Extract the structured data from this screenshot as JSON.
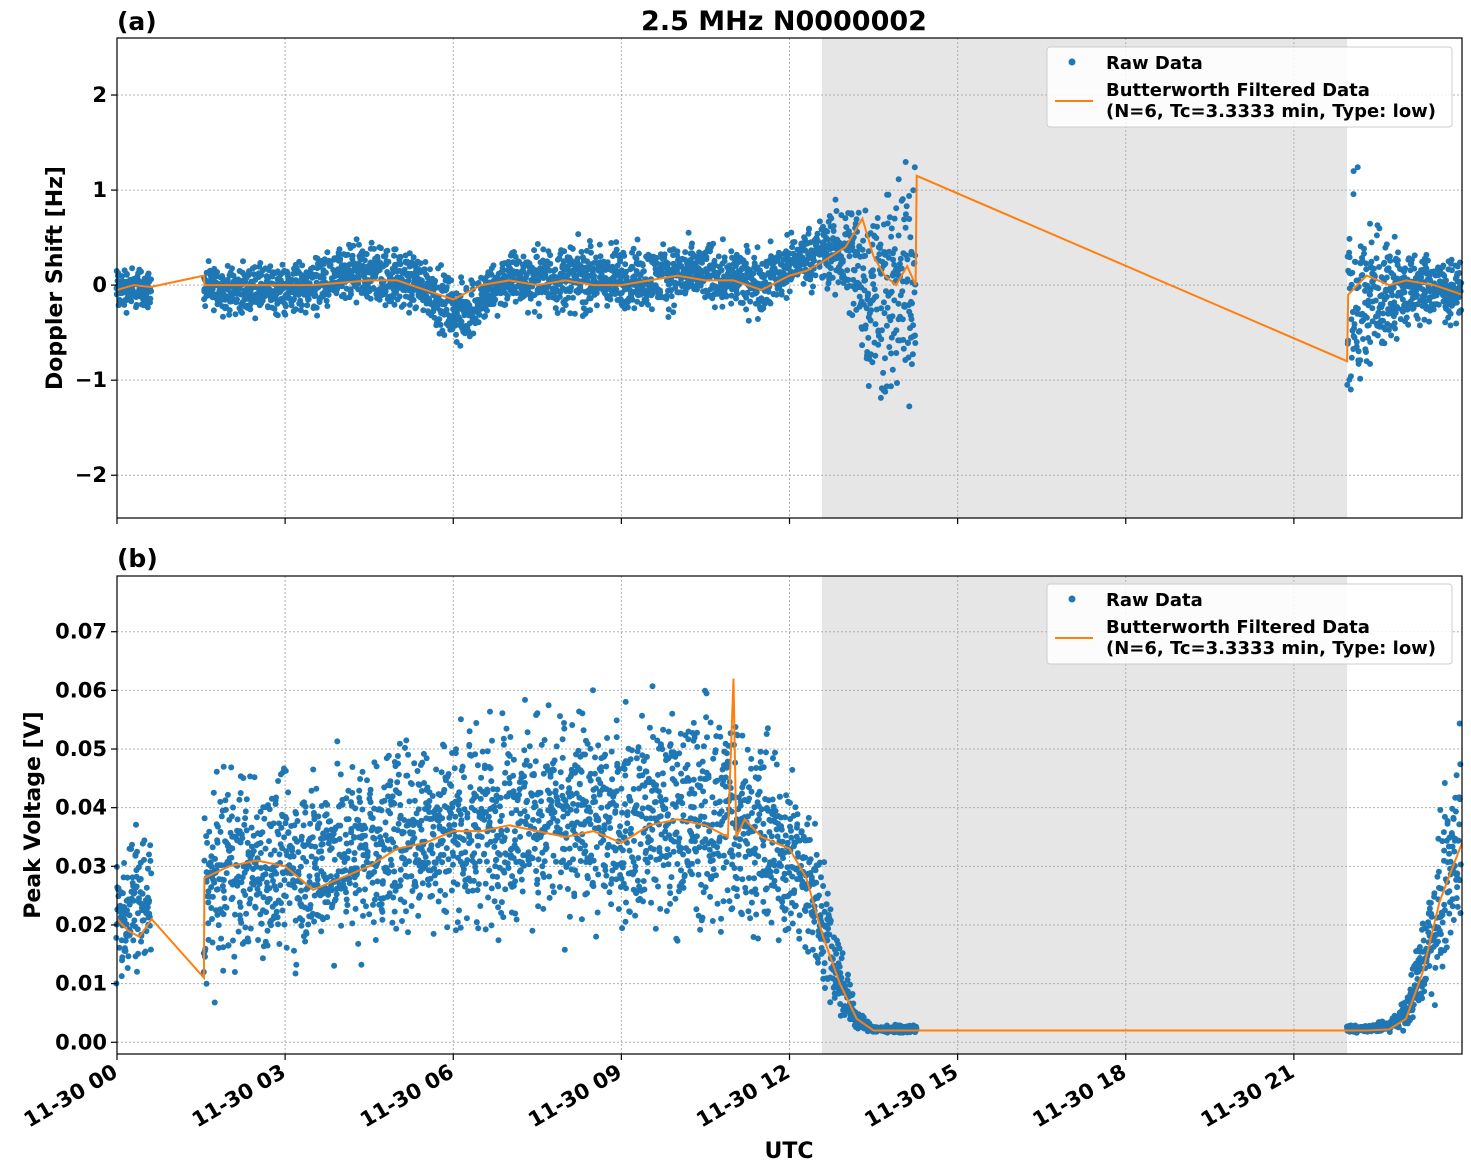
{
  "title": "2.5 MHz N0000002",
  "xlabel": "UTC",
  "x_tick_labels": [
    "11-30 00",
    "11-30 03",
    "11-30 06",
    "11-30 09",
    "11-30 12",
    "11-30 15",
    "11-30 18",
    "11-30 21"
  ],
  "colors": {
    "raw": "#1f77b4",
    "filtered": "#ff7f0e",
    "shade": "#e6e6e6",
    "grid": "#b0b0b0"
  },
  "chart_data": [
    {
      "type": "scatter",
      "panel_label": "(a)",
      "title": "2.5 MHz N0000002",
      "xlabel": "UTC",
      "ylabel": "Doppler Shift [Hz]",
      "x_unit": "hours since 11-30 00:00 UTC",
      "xlim": [
        0,
        24
      ],
      "ylim": [
        -2.45,
        2.6
      ],
      "y_ticks": [
        -2,
        -1,
        0,
        1,
        2
      ],
      "y_tick_labels": [
        "−2",
        "−1",
        "0",
        "1",
        "2"
      ],
      "grid": true,
      "legend": "top-right",
      "shaded_region": [
        12.58,
        21.95
      ],
      "series": [
        {
          "name": "Raw Data",
          "style": "points",
          "envelope": {
            "x": [
              0.0,
              0.3,
              0.65,
              1.55,
              2.0,
              3.0,
              4.5,
              5.5,
              6.1,
              7.0,
              8.5,
              9.5,
              10.5,
              11.5,
              12.2,
              12.6,
              13.0,
              13.5,
              13.9,
              14.25,
              21.95,
              22.2,
              22.5,
              23.0,
              24.0
            ],
            "low": [
              -0.4,
              -0.3,
              -0.3,
              -0.3,
              -0.35,
              -0.4,
              -0.3,
              -0.4,
              -0.75,
              -0.3,
              -0.4,
              -0.35,
              -0.3,
              -0.4,
              -0.1,
              -0.1,
              -0.4,
              -1.5,
              -1.7,
              -1.4,
              -1.6,
              -1.6,
              -1.0,
              -0.6,
              -0.4
            ],
            "high": [
              0.3,
              0.25,
              0.2,
              0.25,
              0.25,
              0.3,
              0.55,
              0.4,
              0.1,
              0.45,
              0.55,
              0.5,
              0.55,
              0.45,
              0.65,
              0.8,
              1.1,
              1.4,
              1.5,
              1.6,
              1.3,
              1.2,
              0.9,
              0.5,
              0.3
            ]
          },
          "gaps": [
            [
              0.62,
              1.55
            ],
            [
              14.25,
              21.95
            ]
          ]
        },
        {
          "name": "Butterworth Filtered Data\n(N=6, Tc=3.3333 min, Type: low)",
          "style": "line",
          "x": [
            0,
            0.3,
            0.6,
            1.55,
            1.56,
            2.5,
            3.5,
            4.5,
            5.0,
            5.5,
            6.0,
            6.5,
            7.0,
            7.5,
            8.0,
            8.5,
            9.0,
            9.5,
            10.0,
            10.5,
            11.0,
            11.5,
            12.0,
            12.3,
            12.6,
            13.0,
            13.3,
            13.5,
            13.7,
            13.9,
            14.1,
            14.25,
            14.27,
            21.95,
            21.97,
            22.3,
            22.7,
            23.0,
            23.5,
            24.0
          ],
          "y": [
            -0.05,
            0.0,
            -0.02,
            0.1,
            0.0,
            0.0,
            0.0,
            0.05,
            0.05,
            -0.05,
            -0.15,
            0.0,
            0.05,
            0.0,
            0.05,
            0.0,
            0.0,
            0.05,
            0.1,
            0.05,
            0.05,
            -0.05,
            0.1,
            0.15,
            0.25,
            0.4,
            0.7,
            0.3,
            0.1,
            0.0,
            0.2,
            0.0,
            1.15,
            -0.8,
            -0.1,
            0.1,
            0.0,
            0.05,
            0.0,
            -0.1
          ]
        }
      ]
    },
    {
      "type": "scatter",
      "panel_label": "(b)",
      "xlabel": "UTC",
      "ylabel": "Peak Voltage [V]",
      "x_unit": "hours since 11-30 00:00 UTC",
      "xlim": [
        0,
        24
      ],
      "ylim": [
        -0.002,
        0.0795
      ],
      "y_ticks": [
        0.0,
        0.01,
        0.02,
        0.03,
        0.04,
        0.05,
        0.06,
        0.07
      ],
      "y_tick_labels": [
        "0.00",
        "0.01",
        "0.02",
        "0.03",
        "0.04",
        "0.05",
        "0.06",
        "0.07"
      ],
      "grid": true,
      "legend": "top-right",
      "shaded_region": [
        12.58,
        21.95
      ],
      "series": [
        {
          "name": "Raw Data",
          "style": "points",
          "envelope": {
            "x": [
              0.0,
              0.3,
              0.6,
              1.55,
              2.0,
              3.0,
              4.0,
              5.0,
              6.0,
              7.0,
              8.0,
              9.0,
              10.0,
              11.0,
              12.0,
              12.5,
              12.9,
              13.2,
              13.5,
              14.0,
              14.25,
              21.95,
              22.3,
              22.7,
              23.0,
              23.5,
              24.0
            ],
            "low": [
              0.006,
              0.008,
              0.008,
              0.006,
              0.01,
              0.01,
              0.012,
              0.015,
              0.016,
              0.016,
              0.016,
              0.016,
              0.015,
              0.014,
              0.014,
              0.008,
              0.002,
              0.0015,
              0.0015,
              0.0015,
              0.0015,
              0.0015,
              0.0015,
              0.0015,
              0.002,
              0.005,
              0.015
            ],
            "high": [
              0.035,
              0.04,
              0.038,
              0.045,
              0.05,
              0.05,
              0.052,
              0.055,
              0.058,
              0.06,
              0.06,
              0.06,
              0.062,
              0.064,
              0.05,
              0.04,
              0.02,
              0.006,
              0.003,
              0.003,
              0.003,
              0.003,
              0.003,
              0.004,
              0.008,
              0.035,
              0.06
            ]
          },
          "gaps": [
            [
              0.62,
              1.55
            ],
            [
              14.25,
              21.95
            ]
          ]
        },
        {
          "name": "Butterworth Filtered Data\n(N=6, Tc=3.3333 min, Type: low)",
          "style": "line",
          "x": [
            0,
            0.2,
            0.4,
            0.62,
            1.55,
            1.56,
            2.0,
            2.5,
            3.0,
            3.5,
            4.0,
            4.5,
            5.0,
            5.5,
            6.0,
            6.5,
            7.0,
            7.5,
            8.0,
            8.5,
            9.0,
            9.5,
            10.0,
            10.5,
            10.9,
            11.0,
            11.05,
            11.2,
            11.5,
            12.0,
            12.3,
            12.6,
            12.9,
            13.2,
            13.5,
            14.0,
            14.25,
            21.95,
            22.3,
            22.7,
            23.0,
            23.3,
            23.6,
            24.0
          ],
          "y": [
            0.021,
            0.019,
            0.018,
            0.021,
            0.011,
            0.028,
            0.03,
            0.031,
            0.03,
            0.026,
            0.028,
            0.03,
            0.033,
            0.034,
            0.036,
            0.036,
            0.037,
            0.036,
            0.035,
            0.036,
            0.034,
            0.037,
            0.038,
            0.037,
            0.035,
            0.062,
            0.035,
            0.038,
            0.035,
            0.033,
            0.028,
            0.018,
            0.01,
            0.004,
            0.002,
            0.002,
            0.002,
            0.002,
            0.002,
            0.0022,
            0.004,
            0.012,
            0.024,
            0.034
          ]
        }
      ]
    }
  ]
}
